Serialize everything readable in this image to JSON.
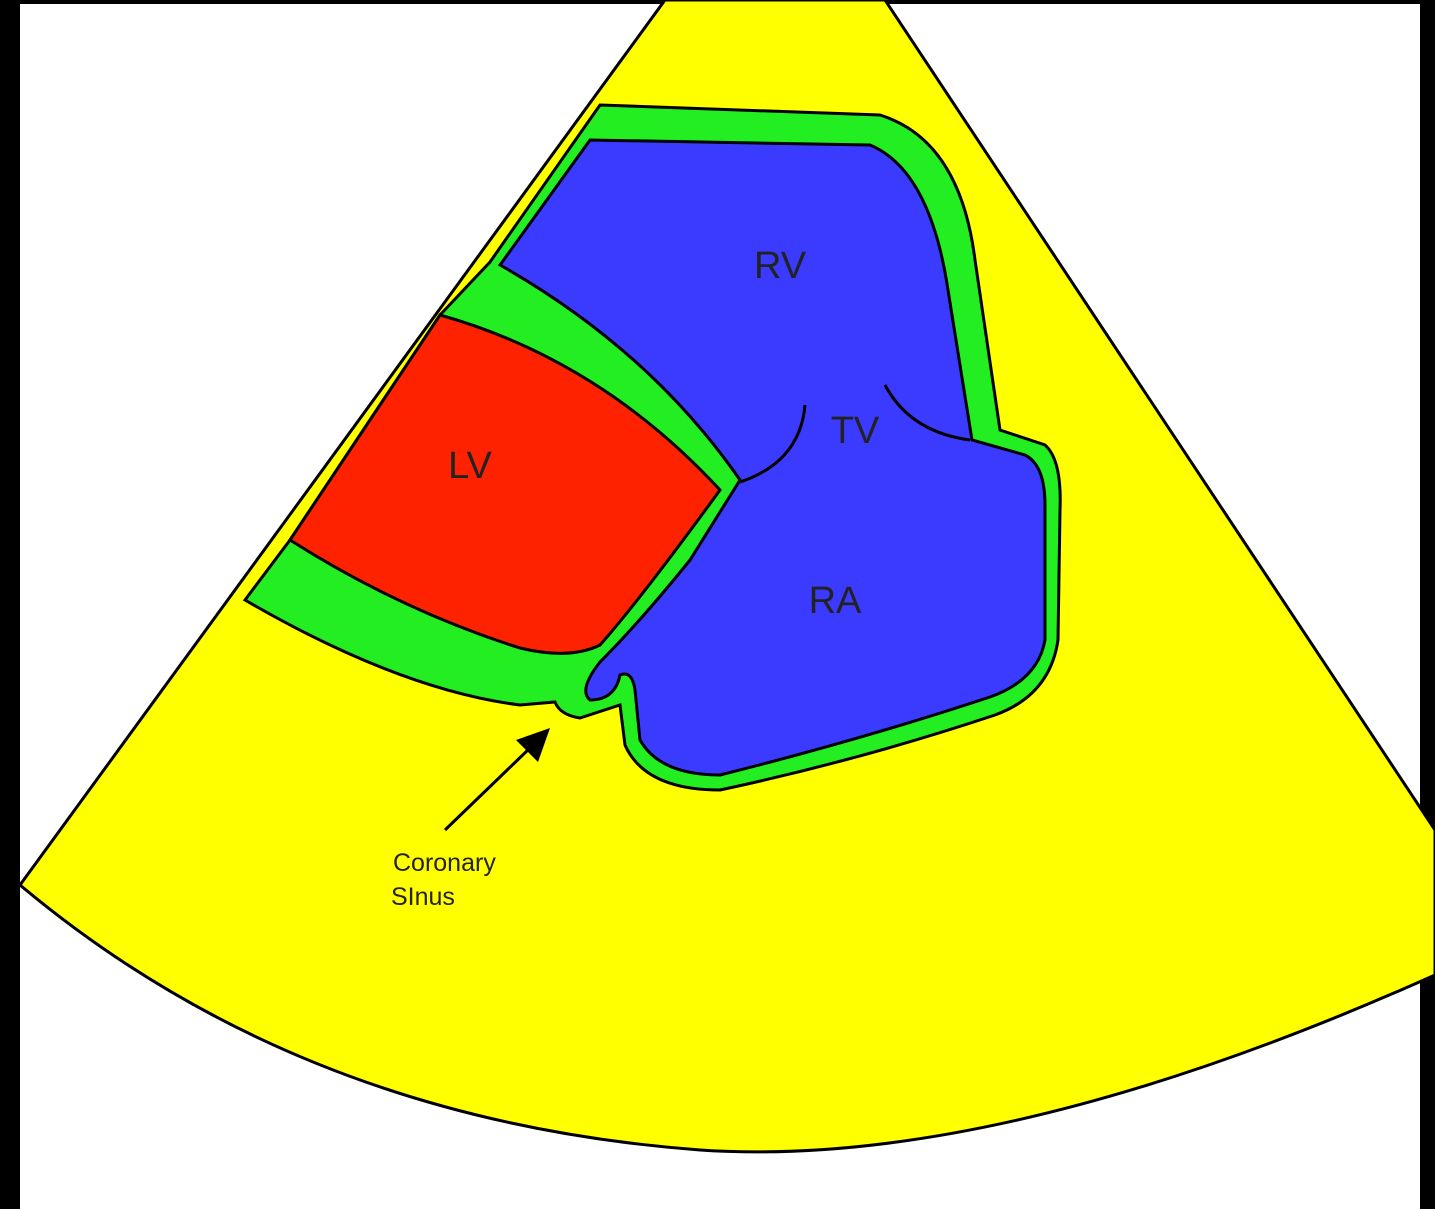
{
  "regions": [
    {
      "label": "RV"
    },
    {
      "label": "TV"
    },
    {
      "label": "LV"
    },
    {
      "label": "RA"
    }
  ],
  "annotation": {
    "lines": [
      "Coronary",
      "SInus"
    ]
  }
}
